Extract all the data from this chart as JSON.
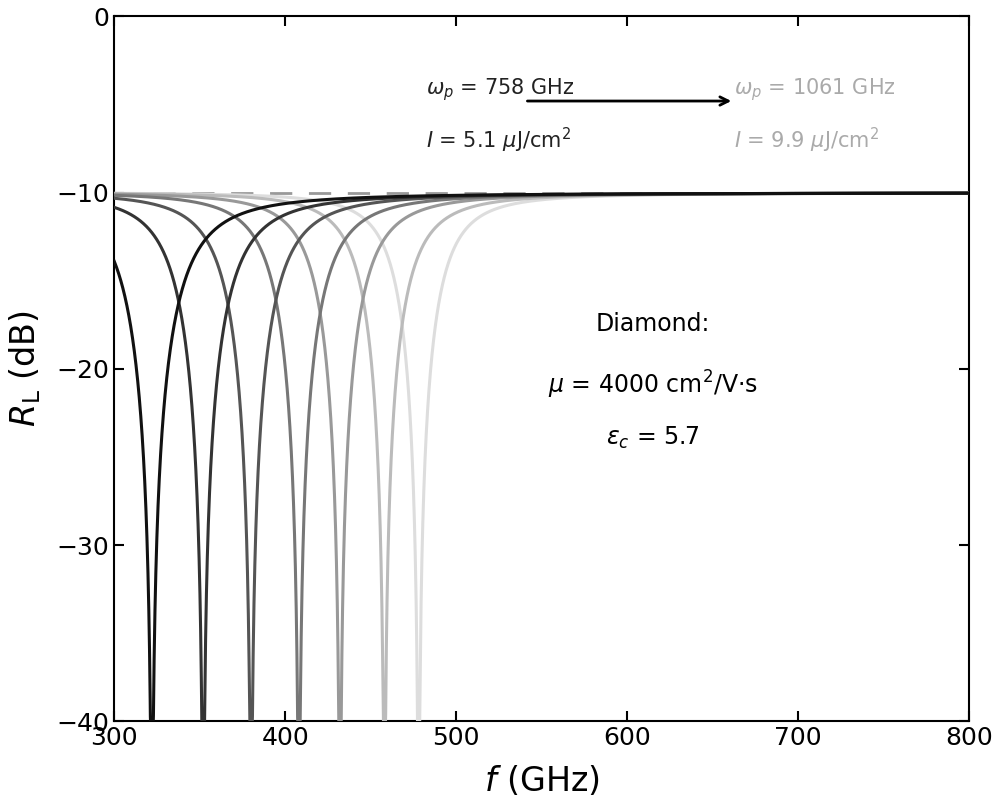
{
  "xlim": [
    300,
    800
  ],
  "ylim": [
    -40,
    0
  ],
  "xticks": [
    300,
    400,
    500,
    600,
    700,
    800
  ],
  "yticks": [
    0,
    -10,
    -20,
    -30,
    -40
  ],
  "dashed_line_y": -10,
  "curve_colors": [
    "#111111",
    "#333333",
    "#555555",
    "#777777",
    "#999999",
    "#bbbbbb",
    "#dddddd"
  ],
  "curve_res_freqs": [
    322,
    352,
    380,
    408,
    432,
    458,
    478
  ],
  "curve_sharpness": [
    55,
    52,
    50,
    48,
    46,
    44,
    42
  ],
  "background_color": "#ffffff",
  "dashed_color": "#999999",
  "label_left_color": "#222222",
  "label_right_color": "#aaaaaa",
  "linewidth": 2.2,
  "asymptote_dB": -10.0
}
